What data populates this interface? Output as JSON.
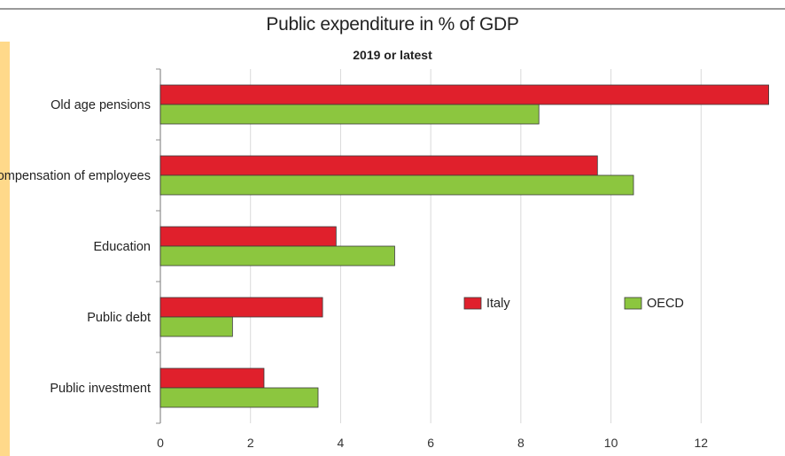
{
  "chart_data": {
    "type": "bar",
    "orientation": "horizontal",
    "title": "Public expenditure in % of GDP",
    "subtitle": "2019 or latest",
    "categories": [
      "Old age pensions",
      "Compensation of employees",
      "Education",
      "Public debt",
      "Public investment"
    ],
    "series": [
      {
        "name": "Italy",
        "color": "#e0202c",
        "values": [
          13.5,
          9.7,
          3.9,
          3.6,
          2.3
        ]
      },
      {
        "name": "OECD",
        "color": "#8cc63f",
        "values": [
          8.4,
          10.5,
          5.2,
          1.6,
          3.5
        ]
      }
    ],
    "xlim": [
      0,
      14
    ],
    "xticks": [
      0,
      2,
      4,
      6,
      8,
      10,
      12,
      14
    ],
    "grid": true,
    "legend_position": "center-right"
  }
}
